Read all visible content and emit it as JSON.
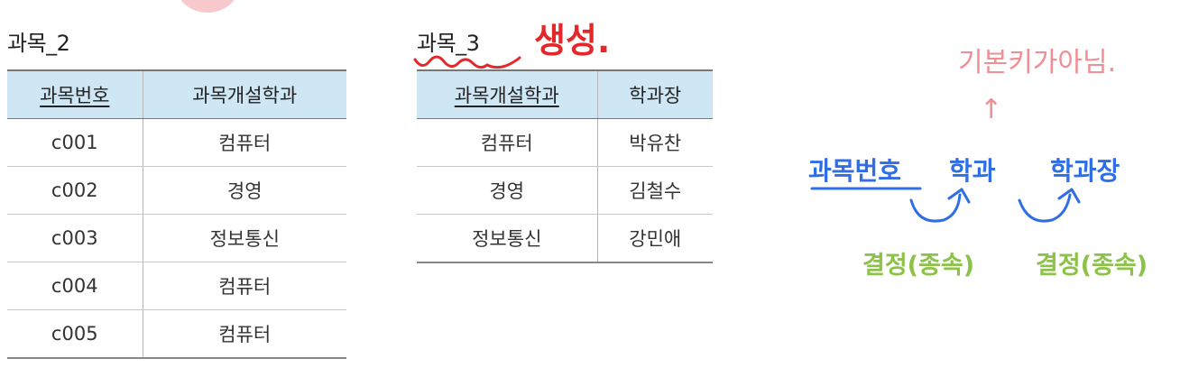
{
  "table2": {
    "title": "과목_2",
    "headers": [
      "과목번호",
      "과목개설학과"
    ],
    "rows": [
      [
        "c001",
        "컴퓨터"
      ],
      [
        "c002",
        "경영"
      ],
      [
        "c003",
        "정보통신"
      ],
      [
        "c004",
        "컴퓨터"
      ],
      [
        "c005",
        "컴퓨터"
      ]
    ]
  },
  "table3": {
    "title": "과목_3",
    "headers": [
      "과목개설학과",
      "학과장"
    ],
    "rows": [
      [
        "컴퓨터",
        "박유찬"
      ],
      [
        "경영",
        "김철수"
      ],
      [
        "정보통신",
        "강민애"
      ]
    ]
  },
  "annotations": {
    "create_note": "생성.",
    "not_primary_key": "기본키가아님.",
    "up_arrow": "↑",
    "attr1": "과목번호",
    "attr2": "학과",
    "attr3": "학과장",
    "dep1": "결정(종속)",
    "dep2": "결정(종속)",
    "colors": {
      "red": "#e4282a",
      "blue": "#2f6ee6",
      "pink": "#ef8e95",
      "green": "#8dc24a",
      "header_bg": "#cfe6f4"
    }
  }
}
